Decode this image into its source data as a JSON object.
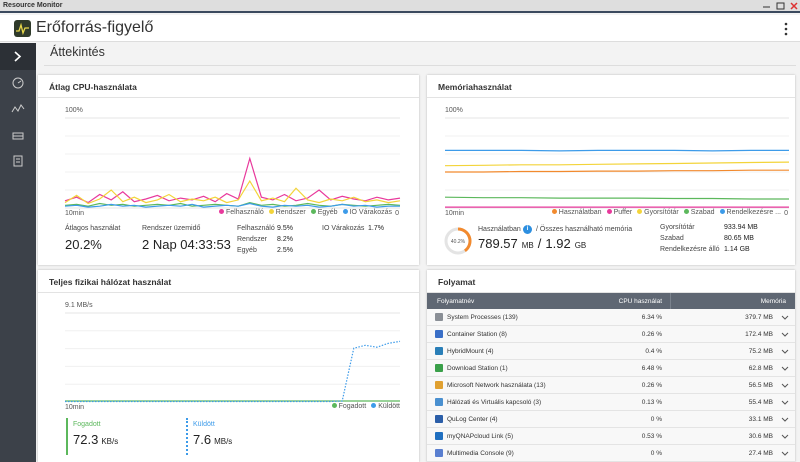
{
  "window": {
    "title": "Resource Monitor"
  },
  "header": {
    "title": "Erőforrás-figyelő"
  },
  "page": {
    "title": "Áttekintés"
  },
  "cpu": {
    "title": "Átlag CPU-használata",
    "chart": {
      "type": "line",
      "x_label": "10min",
      "ylim": [
        0,
        100
      ],
      "yticks": [
        0,
        {
          "value": 100,
          "label": "100%"
        }
      ],
      "series": [
        {
          "name": "Felhasználó",
          "color": "#e8399c",
          "values": [
            8,
            12,
            6,
            15,
            9,
            18,
            7,
            10,
            14,
            8,
            11,
            9,
            13,
            7,
            16,
            10,
            55,
            12,
            9,
            15,
            8,
            11,
            20,
            9,
            13,
            10,
            8,
            12,
            9,
            11
          ]
        },
        {
          "name": "Rendszer",
          "color": "#f3d43a",
          "values": [
            6,
            14,
            5,
            10,
            20,
            7,
            12,
            6,
            9,
            15,
            7,
            10,
            8,
            12,
            6,
            9,
            30,
            8,
            11,
            7,
            22,
            9,
            6,
            10,
            8,
            12,
            7,
            9,
            6,
            8
          ]
        },
        {
          "name": "Egyéb",
          "color": "#5cb85c",
          "values": [
            3,
            4,
            2,
            5,
            3,
            4,
            2,
            3,
            4,
            3,
            5,
            2,
            3,
            4,
            3,
            2,
            6,
            3,
            4,
            2,
            3,
            5,
            3,
            2,
            4,
            3,
            2,
            3,
            4,
            3
          ]
        },
        {
          "name": "IO Várakozás",
          "color": "#3d9be9",
          "values": [
            2,
            3,
            1,
            2,
            4,
            2,
            3,
            1,
            2,
            3,
            2,
            4,
            1,
            2,
            3,
            2,
            5,
            2,
            1,
            3,
            2,
            3,
            1,
            2,
            4,
            2,
            3,
            1,
            2,
            2
          ]
        }
      ]
    },
    "stats": {
      "avg_label": "Átlagos használat",
      "avg_value": "20.2%",
      "uptime_label": "Rendszer üzemidő",
      "uptime_value": "2 Nap 04:33:53",
      "breakdown": [
        [
          "Felhasználó",
          "9.5%"
        ],
        [
          "Rendszer",
          "8.2%"
        ],
        [
          "Egyéb",
          "2.5%"
        ],
        [
          "IO Várakozás",
          "1.7%"
        ]
      ]
    }
  },
  "memory": {
    "title": "Memóriahasználat",
    "chart": {
      "type": "line",
      "x_label": "10min",
      "ylim": [
        0,
        100
      ],
      "yticks": [
        0,
        {
          "value": 100,
          "label": "100%"
        }
      ],
      "series": [
        {
          "name": "Használatban",
          "color": "#f28a2e",
          "values": [
            40,
            40,
            40.5,
            40.5,
            41,
            41,
            41.5,
            41.5,
            42,
            42
          ]
        },
        {
          "name": "Puffer",
          "color": "#e8399c",
          "values": [
            1,
            1,
            1,
            1,
            1,
            1,
            1,
            1,
            1,
            1
          ]
        },
        {
          "name": "Gyorsítótár",
          "color": "#f3d43a",
          "values": [
            47,
            47.5,
            48,
            48,
            48.5,
            49,
            49.5,
            50,
            50.5,
            51
          ]
        },
        {
          "name": "Szabad",
          "color": "#5cb85c",
          "values": [
            12,
            11.5,
            11.5,
            11,
            11,
            11,
            10.5,
            10.5,
            10,
            10
          ]
        },
        {
          "name": "Rendelkezésre ...",
          "color": "#3d9be9",
          "values": [
            64,
            64,
            64,
            63.5,
            64,
            64,
            64,
            63.5,
            64,
            64
          ]
        }
      ]
    },
    "stats": {
      "used_percent": {
        "value": 40.2,
        "label": "40.2%"
      },
      "used_label": "Használatban",
      "total_label": "/ Összes használható memória",
      "used_value": "789.57",
      "used_unit": "MB",
      "separator": "/",
      "total_value": "1.92",
      "total_unit": "GB",
      "details": [
        [
          "Gyorsítótár",
          "933.94 MB"
        ],
        [
          "Szabad",
          "80.65 MB"
        ],
        [
          "Rendelkezésre álló",
          "1.14 GB"
        ]
      ]
    }
  },
  "network": {
    "title": "Teljes fizikai hálózat használat",
    "chart": {
      "type": "line",
      "x_label": "10min",
      "ylim": [
        0,
        9.1
      ],
      "yticks": [
        {
          "value": 9.1,
          "label": "9.1 MB/s"
        }
      ],
      "series": [
        {
          "name": "Fogadott",
          "color": "#5cb85c",
          "values": [
            0.1,
            0.1,
            0.1,
            0.1,
            0.1,
            0.1,
            0.1,
            0.1,
            0.1,
            0.1,
            0.1,
            0.1,
            0.1,
            0.1,
            0.1,
            0.1,
            0.1,
            0.1,
            0.1,
            0.1,
            0.1,
            0.1,
            0.1,
            0.1,
            0.1,
            0.1,
            0.1,
            0.1,
            0.1,
            0.1
          ]
        },
        {
          "name": "Küldött",
          "color": "#3d9be9",
          "dash": true,
          "values": [
            0.05,
            0.05,
            0.05,
            0.05,
            0.05,
            0.05,
            0.05,
            0.05,
            0.05,
            0.05,
            0.05,
            0.05,
            0.05,
            0.05,
            0.05,
            0.05,
            0.05,
            0.05,
            0.05,
            0.05,
            0.05,
            0.05,
            0.05,
            0.05,
            0.1,
            5.5,
            5.8,
            5.6,
            6.0,
            6.2
          ]
        }
      ]
    },
    "stats": [
      {
        "label": "Fogadott",
        "value": "72.3",
        "unit": "KB/s"
      },
      {
        "label": "Küldött",
        "value": "7.6",
        "unit": "MB/s"
      }
    ]
  },
  "processes": {
    "title": "Folyamat",
    "columns": [
      "Folyamatnév",
      "CPU használat",
      "Memória"
    ],
    "rows": [
      [
        "System Processes (139)",
        "6.34 %",
        "379.7 MB"
      ],
      [
        "Container Station (8)",
        "0.26 %",
        "172.4 MB"
      ],
      [
        "HybridMount (4)",
        "0.4 %",
        "75.2 MB"
      ],
      [
        "Download Station (1)",
        "6.48 %",
        "62.8 MB"
      ],
      [
        "Microsoft Network használata (13)",
        "0.26 %",
        "56.5 MB"
      ],
      [
        "Hálózati és Virtuális kapcsoló (3)",
        "0.13 %",
        "55.4 MB"
      ],
      [
        "QuLog Center (4)",
        "0 %",
        "33.1 MB"
      ],
      [
        "myQNAPcloud Link (5)",
        "0.53 %",
        "30.6 MB"
      ],
      [
        "Multimedia Console (9)",
        "0 %",
        "27.4 MB"
      ]
    ]
  }
}
